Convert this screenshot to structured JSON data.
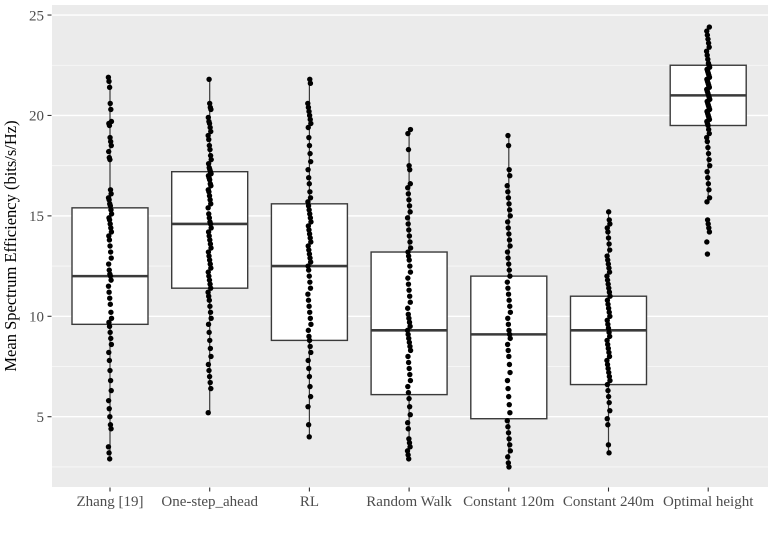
{
  "chart_data": {
    "type": "boxplot_with_points",
    "title": "",
    "xlabel": "",
    "ylabel": "Mean Spectrum Efficiency (bits/s/Hz)",
    "ylim": [
      1.5,
      25.5
    ],
    "yticks": [
      25,
      20,
      15,
      10,
      5
    ],
    "yticks_minor": [
      22.5,
      17.5,
      12.5,
      7.5,
      2.5
    ],
    "grid": "major and minor horizontal white gridlines on gray panel",
    "legend": "none",
    "categories": [
      "Zhang [19]",
      "One-step_ahead",
      "RL",
      "Random Walk",
      "Constant 120m",
      "Constant 240m",
      "Optimal height"
    ],
    "series": [
      {
        "name": "Zhang [19]",
        "box": {
          "whisker_low": 2.9,
          "q1": 9.6,
          "median": 12.0,
          "q3": 15.4,
          "whisker_high": 21.9
        },
        "points": [
          21.9,
          21.7,
          21.4,
          20.6,
          20.3,
          19.7,
          19.6,
          19.5,
          18.9,
          18.7,
          18.5,
          18.2,
          17.9,
          17.8,
          16.3,
          16.1,
          15.9,
          15.8,
          15.6,
          15.5,
          15.3,
          15.1,
          14.9,
          14.8,
          14.6,
          14.4,
          14.2,
          14.0,
          13.8,
          13.5,
          13.2,
          12.9,
          12.6,
          12.3,
          12.1,
          12.0,
          11.8,
          11.5,
          11.2,
          10.9,
          10.6,
          10.2,
          9.9,
          9.7,
          9.5,
          9.2,
          8.9,
          8.6,
          8.2,
          7.8,
          7.3,
          6.8,
          6.3,
          5.8,
          5.4,
          5.0,
          4.6,
          4.4,
          3.5,
          3.2,
          2.9
        ]
      },
      {
        "name": "One-step_ahead",
        "box": {
          "whisker_low": 5.2,
          "q1": 11.4,
          "median": 14.6,
          "q3": 17.2,
          "whisker_high": 21.8
        },
        "points": [
          21.8,
          20.6,
          20.4,
          20.3,
          19.9,
          19.7,
          19.6,
          19.4,
          19.2,
          19.0,
          18.8,
          18.5,
          18.3,
          18.0,
          17.8,
          17.6,
          17.4,
          17.3,
          17.2,
          17.1,
          17.0,
          16.9,
          16.8,
          16.6,
          16.5,
          16.3,
          16.2,
          16.0,
          15.8,
          15.6,
          15.4,
          15.1,
          14.9,
          14.7,
          14.6,
          14.4,
          14.2,
          14.0,
          13.8,
          13.6,
          13.4,
          13.2,
          13.0,
          12.8,
          12.6,
          12.4,
          12.2,
          12.0,
          11.8,
          11.6,
          11.4,
          11.2,
          11.0,
          10.8,
          10.5,
          10.2,
          9.9,
          9.6,
          9.2,
          8.8,
          8.4,
          8.0,
          7.6,
          7.3,
          7.0,
          6.7,
          6.4,
          5.2
        ]
      },
      {
        "name": "RL",
        "box": {
          "whisker_low": 4.0,
          "q1": 8.8,
          "median": 12.5,
          "q3": 15.6,
          "whisker_high": 21.8
        },
        "points": [
          21.8,
          21.6,
          20.6,
          20.4,
          20.2,
          20.0,
          19.8,
          19.6,
          19.4,
          18.9,
          18.5,
          18.1,
          17.7,
          17.3,
          16.9,
          16.6,
          16.2,
          15.9,
          15.7,
          15.5,
          15.3,
          15.1,
          14.9,
          14.7,
          14.5,
          14.3,
          14.1,
          13.9,
          13.7,
          13.5,
          13.3,
          13.1,
          12.9,
          12.7,
          12.5,
          12.3,
          12.0,
          11.7,
          11.4,
          11.1,
          10.8,
          10.5,
          10.2,
          9.9,
          9.6,
          9.3,
          9.0,
          8.8,
          8.5,
          8.2,
          7.8,
          7.4,
          7.0,
          6.5,
          6.0,
          5.5,
          4.6,
          4.0
        ]
      },
      {
        "name": "Random Walk",
        "box": {
          "whisker_low": 2.9,
          "q1": 6.1,
          "median": 9.3,
          "q3": 13.2,
          "whisker_high": 19.3
        },
        "points": [
          19.3,
          19.1,
          18.3,
          17.5,
          17.3,
          16.6,
          16.4,
          16.1,
          15.8,
          15.5,
          15.2,
          14.9,
          14.6,
          14.3,
          14.0,
          13.7,
          13.4,
          13.2,
          13.0,
          12.8,
          12.5,
          12.2,
          11.9,
          11.6,
          11.3,
          11.0,
          10.7,
          10.4,
          10.1,
          9.9,
          9.7,
          9.5,
          9.3,
          9.1,
          8.9,
          8.7,
          8.5,
          8.3,
          8.0,
          7.7,
          7.4,
          7.1,
          6.8,
          6.5,
          6.2,
          5.9,
          5.5,
          5.1,
          4.7,
          4.4,
          3.9,
          3.7,
          3.5,
          3.3,
          3.1,
          2.9
        ]
      },
      {
        "name": "Constant 120m",
        "box": {
          "whisker_low": 2.5,
          "q1": 4.9,
          "median": 9.1,
          "q3": 12.0,
          "whisker_high": 19.0
        },
        "points": [
          19.0,
          18.5,
          17.3,
          17.0,
          16.5,
          16.2,
          15.9,
          15.6,
          15.3,
          15.0,
          14.7,
          14.4,
          14.1,
          13.8,
          13.5,
          13.2,
          12.9,
          12.6,
          12.3,
          12.0,
          11.7,
          11.4,
          11.1,
          10.8,
          10.5,
          10.2,
          9.9,
          9.6,
          9.3,
          9.1,
          8.9,
          8.6,
          8.3,
          8.0,
          7.6,
          7.2,
          6.8,
          6.4,
          6.0,
          5.6,
          5.2,
          4.8,
          4.5,
          4.2,
          3.9,
          3.6,
          3.3,
          3.0,
          2.7,
          2.5
        ]
      },
      {
        "name": "Constant 240m",
        "box": {
          "whisker_low": 3.2,
          "q1": 6.6,
          "median": 9.3,
          "q3": 11.0,
          "whisker_high": 15.2
        },
        "points": [
          15.2,
          14.8,
          14.6,
          14.4,
          14.2,
          13.9,
          13.6,
          13.3,
          13.0,
          12.8,
          12.6,
          12.4,
          12.2,
          12.0,
          11.8,
          11.6,
          11.4,
          11.2,
          11.0,
          10.8,
          10.6,
          10.4,
          10.2,
          10.0,
          9.8,
          9.6,
          9.4,
          9.2,
          9.0,
          8.8,
          8.6,
          8.4,
          8.2,
          8.0,
          7.8,
          7.6,
          7.4,
          7.2,
          7.0,
          6.8,
          6.6,
          6.3,
          6.0,
          5.7,
          5.3,
          4.9,
          4.6,
          3.6,
          3.2
        ]
      },
      {
        "name": "Optimal height",
        "box": {
          "whisker_low": 15.7,
          "q1": 19.5,
          "median": 21.0,
          "q3": 22.5,
          "whisker_high": 24.4
        },
        "points": [
          24.4,
          24.2,
          24.0,
          23.8,
          23.6,
          23.4,
          23.2,
          23.0,
          22.8,
          22.6,
          22.5,
          22.4,
          22.3,
          22.2,
          22.1,
          22.0,
          21.9,
          21.8,
          21.7,
          21.6,
          21.5,
          21.4,
          21.3,
          21.2,
          21.1,
          21.0,
          20.9,
          20.8,
          20.7,
          20.6,
          20.5,
          20.4,
          20.3,
          20.2,
          20.1,
          20.0,
          19.9,
          19.8,
          19.7,
          19.6,
          19.5,
          19.3,
          19.1,
          18.9,
          18.7,
          18.4,
          18.1,
          17.8,
          17.5,
          17.2,
          16.9,
          16.6,
          16.3,
          15.9,
          15.7,
          14.8,
          14.6,
          14.4,
          14.2,
          13.7,
          13.1
        ]
      }
    ],
    "colors": {
      "panel_bg": "#EBEBEB",
      "grid_major": "#FFFFFF",
      "grid_minor": "#FFFFFF",
      "box_fill": "#FFFFFF",
      "box_stroke": "#3A3A3A",
      "median_stroke": "#3A3A3A",
      "whisker_stroke": "#3A3A3A",
      "point": "#000000",
      "axis_text": "#4D4D4D",
      "tick_mark": "#333333",
      "axis_title_text": "#000000"
    }
  }
}
